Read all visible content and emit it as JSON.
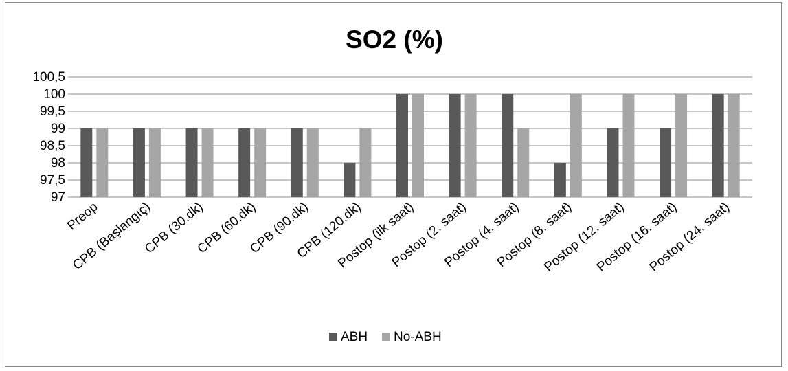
{
  "chart_data": {
    "type": "bar",
    "title": "SO2 (%)",
    "xlabel": "",
    "ylabel": "",
    "ylim": [
      97,
      100.5
    ],
    "y_ticks": [
      "97",
      "97,5",
      "98",
      "98,5",
      "99",
      "99,5",
      "100",
      "100,5"
    ],
    "y_tick_values": [
      97,
      97.5,
      98,
      98.5,
      99,
      99.5,
      100,
      100.5
    ],
    "grid": "horizontal",
    "legend_position": "bottom",
    "categories": [
      "Preop",
      "CPB (Başlangıç)",
      "CPB (30.dk)",
      "CPB (60.dk)",
      "CPB (90.dk)",
      "CPB (120.dk)",
      "Postop (ilk saat)",
      "Postop (2. saat)",
      "Postop (4. saat)",
      "Postop (8. saat)",
      "Postop (12. saat)",
      "Postop (16. saat)",
      "Postop (24. saat)"
    ],
    "series": [
      {
        "name": "ABH",
        "color": "#595959",
        "values": [
          99,
          99,
          99,
          99,
          99,
          98,
          100,
          100,
          100,
          98,
          99,
          99,
          100
        ]
      },
      {
        "name": "No-ABH",
        "color": "#a6a6a6",
        "values": [
          99,
          99,
          99,
          99,
          99,
          99,
          100,
          100,
          99,
          100,
          100,
          100,
          100
        ]
      }
    ]
  }
}
